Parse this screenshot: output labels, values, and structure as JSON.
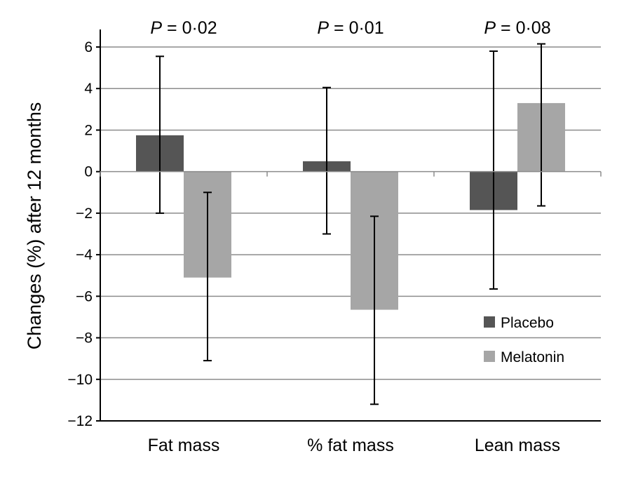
{
  "chart_data": {
    "type": "bar",
    "title": "",
    "xlabel": "",
    "ylabel": "Changes (%) after 12 months",
    "ylim": [
      -12,
      6
    ],
    "yticks": [
      6,
      4,
      2,
      0,
      -2,
      -4,
      -6,
      -8,
      -10,
      -12
    ],
    "ytick_labels": [
      "6",
      "4",
      "2",
      "0",
      "−2",
      "−4",
      "−6",
      "−8",
      "−10",
      "−12"
    ],
    "grid": true,
    "legend_position": "lower-right",
    "categories": [
      "Fat mass",
      "% fat mass",
      "Lean mass"
    ],
    "annotations": [
      {
        "prefix": "P",
        "text": " = 0·02"
      },
      {
        "prefix": "P",
        "text": " = 0·01"
      },
      {
        "prefix": "P",
        "text": " = 0·08"
      }
    ],
    "series": [
      {
        "name": "Placebo",
        "color": "#555555",
        "values": [
          1.75,
          0.5,
          -1.85
        ],
        "error_high": [
          5.55,
          4.05,
          5.8
        ],
        "error_low": [
          -2.0,
          -3.0,
          -5.65
        ]
      },
      {
        "name": "Melatonin",
        "color": "#a6a6a6",
        "values": [
          -5.1,
          -6.65,
          3.3
        ],
        "error_high": [
          -1.0,
          -2.15,
          6.15
        ],
        "error_low": [
          -9.1,
          -11.2,
          -1.65
        ]
      }
    ]
  }
}
